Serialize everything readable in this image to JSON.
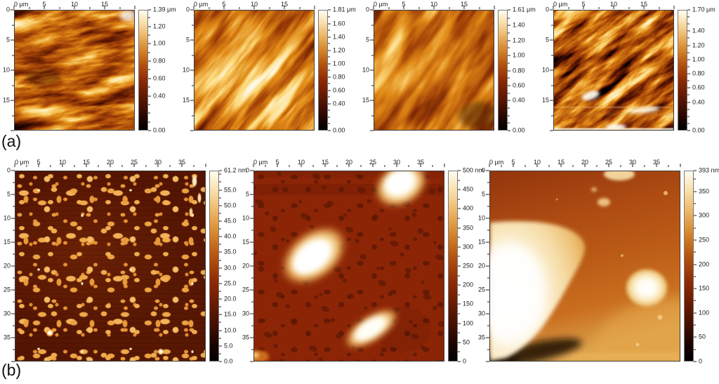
{
  "figure": {
    "row_a": {
      "label": "(a)",
      "scan_size_um": 20,
      "x_tick_labels": [
        "0 μm",
        "5",
        "10",
        "15"
      ],
      "y_tick_labels": [
        "0",
        "5",
        "10",
        "15"
      ],
      "panels": [
        {
          "name": "a1",
          "height_max": "1.39 μm",
          "colorbar_labels": [
            "1.20",
            "1.00",
            "0.80",
            "0.60",
            "0.40",
            "0.00"
          ]
        },
        {
          "name": "a2",
          "height_max": "1.81 μm",
          "colorbar_labels": [
            "1.60",
            "1.40",
            "1.20",
            "1.00",
            "0.80",
            "0.60",
            "0.40",
            "0.00"
          ]
        },
        {
          "name": "a3",
          "height_max": "1.61 μm",
          "colorbar_labels": [
            "1.40",
            "1.20",
            "1.00",
            "0.80",
            "0.60",
            "0.40",
            "0.00"
          ]
        },
        {
          "name": "a4",
          "height_max": "1.70 μm",
          "colorbar_labels": [
            "1.40",
            "1.20",
            "1.00",
            "0.80",
            "0.60",
            "0.40",
            "0.00"
          ]
        }
      ]
    },
    "row_b": {
      "label": "(b)",
      "scan_size_um": 40,
      "x_tick_labels": [
        "0 μm",
        "5",
        "10",
        "15",
        "20",
        "25",
        "30",
        "35"
      ],
      "y_tick_labels": [
        "0",
        "5",
        "10",
        "15",
        "20",
        "25",
        "30",
        "35"
      ],
      "panels": [
        {
          "name": "b1",
          "height_max": "61.2 nm",
          "colorbar_labels": [
            "55.0",
            "50.0",
            "45.0",
            "40.0",
            "35.0",
            "30.0",
            "25.0",
            "20.0",
            "15.0",
            "10.0",
            "5.0",
            "0.0"
          ]
        },
        {
          "name": "b2",
          "height_max": "500 nm",
          "colorbar_labels": [
            "450",
            "400",
            "350",
            "300",
            "250",
            "200",
            "150",
            "100",
            "50",
            "0"
          ]
        },
        {
          "name": "b3",
          "height_max": "393 nm",
          "colorbar_labels": [
            "350",
            "300",
            "250",
            "200",
            "150",
            "100",
            "50",
            "0"
          ]
        }
      ]
    }
  },
  "palette": {
    "afm_gold_gradient": [
      "#000000",
      "#190400",
      "#3f0e01",
      "#681a02",
      "#8f2b04",
      "#b5530e",
      "#d88a2e",
      "#eebb6d",
      "#f9e0ad",
      "#fdf4dc",
      "#fffdf4"
    ]
  },
  "chart_data": [
    {
      "type": "heatmap",
      "panel": "a1",
      "x_range_um": [
        0,
        20
      ],
      "y_range_um": [
        0,
        20
      ],
      "tick_step_um": 5,
      "colorbar_max": "1.39 μm",
      "colorbar_ticks": [
        "1.39 μm",
        "1.20",
        "1.00",
        "0.80",
        "0.60",
        "0.40",
        "0.00"
      ],
      "colormap": "AFM gold (black-red-orange-white)",
      "legend_position": "right",
      "content": "dense crossing crystallite ridges"
    },
    {
      "type": "heatmap",
      "panel": "a2",
      "x_range_um": [
        0,
        20
      ],
      "y_range_um": [
        0,
        20
      ],
      "tick_step_um": 5,
      "colorbar_max": "1.81 μm",
      "colorbar_ticks": [
        "1.81 μm",
        "1.60",
        "1.40",
        "1.20",
        "1.00",
        "0.80",
        "0.60",
        "0.40",
        "0.00"
      ],
      "colormap": "AFM gold (black-red-orange-white)",
      "legend_position": "right",
      "content": "broad diagonal lamellar bands"
    },
    {
      "type": "heatmap",
      "panel": "a3",
      "x_range_um": [
        0,
        20
      ],
      "y_range_um": [
        0,
        20
      ],
      "tick_step_um": 5,
      "colorbar_max": "1.61 μm",
      "colorbar_ticks": [
        "1.61 μm",
        "1.40",
        "1.20",
        "1.00",
        "0.80",
        "0.60",
        "0.40",
        "0.00"
      ],
      "colormap": "AFM gold (black-red-orange-white)",
      "legend_position": "right",
      "content": "smooth soft diagonal ridges"
    },
    {
      "type": "heatmap",
      "panel": "a4",
      "x_range_um": [
        0,
        20
      ],
      "y_range_um": [
        0,
        20
      ],
      "tick_step_um": 5,
      "colorbar_max": "1.70 μm",
      "colorbar_ticks": [
        "1.70 μm",
        "1.40",
        "1.20",
        "1.00",
        "0.80",
        "0.60",
        "0.40",
        "0.00"
      ],
      "colormap": "AFM gold (black-red-orange-white)",
      "legend_position": "right",
      "content": "needle-like crystallites with bright scan lines near bottom"
    },
    {
      "type": "heatmap",
      "panel": "b1",
      "x_range_um": [
        0,
        40
      ],
      "y_range_um": [
        0,
        40
      ],
      "tick_step_um": 5,
      "colorbar_max": "61.2 nm",
      "colorbar_ticks": [
        "61.2 nm",
        "55.0",
        "50.0",
        "45.0",
        "40.0",
        "35.0",
        "30.0",
        "25.0",
        "20.0",
        "15.0",
        "10.0",
        "5.0",
        "0.0"
      ],
      "colormap": "AFM gold (black-red-orange-white)",
      "legend_position": "right",
      "content": "many small bright droplet domains on dark background"
    },
    {
      "type": "heatmap",
      "panel": "b2",
      "x_range_um": [
        0,
        40
      ],
      "y_range_um": [
        0,
        40
      ],
      "tick_step_um": 5,
      "colorbar_max": "500 nm",
      "colorbar_ticks": [
        "500 nm",
        "450",
        "400",
        "350",
        "300",
        "250",
        "200",
        "150",
        "100",
        "50",
        "0"
      ],
      "colormap": "AFM gold (black-red-orange-white)",
      "legend_position": "right",
      "content": "three large bright aggregates with dark pit clusters"
    },
    {
      "type": "heatmap",
      "panel": "b3",
      "x_range_um": [
        0,
        40
      ],
      "y_range_um": [
        0,
        40
      ],
      "tick_step_um": 5,
      "colorbar_max": "393 nm",
      "colorbar_ticks": [
        "393 nm",
        "350",
        "300",
        "250",
        "200",
        "150",
        "100",
        "50",
        "0"
      ],
      "colormap": "AFM gold (black-red-orange-white)",
      "legend_position": "right",
      "content": "large flat terrace lower-left, round island right of center"
    }
  ]
}
